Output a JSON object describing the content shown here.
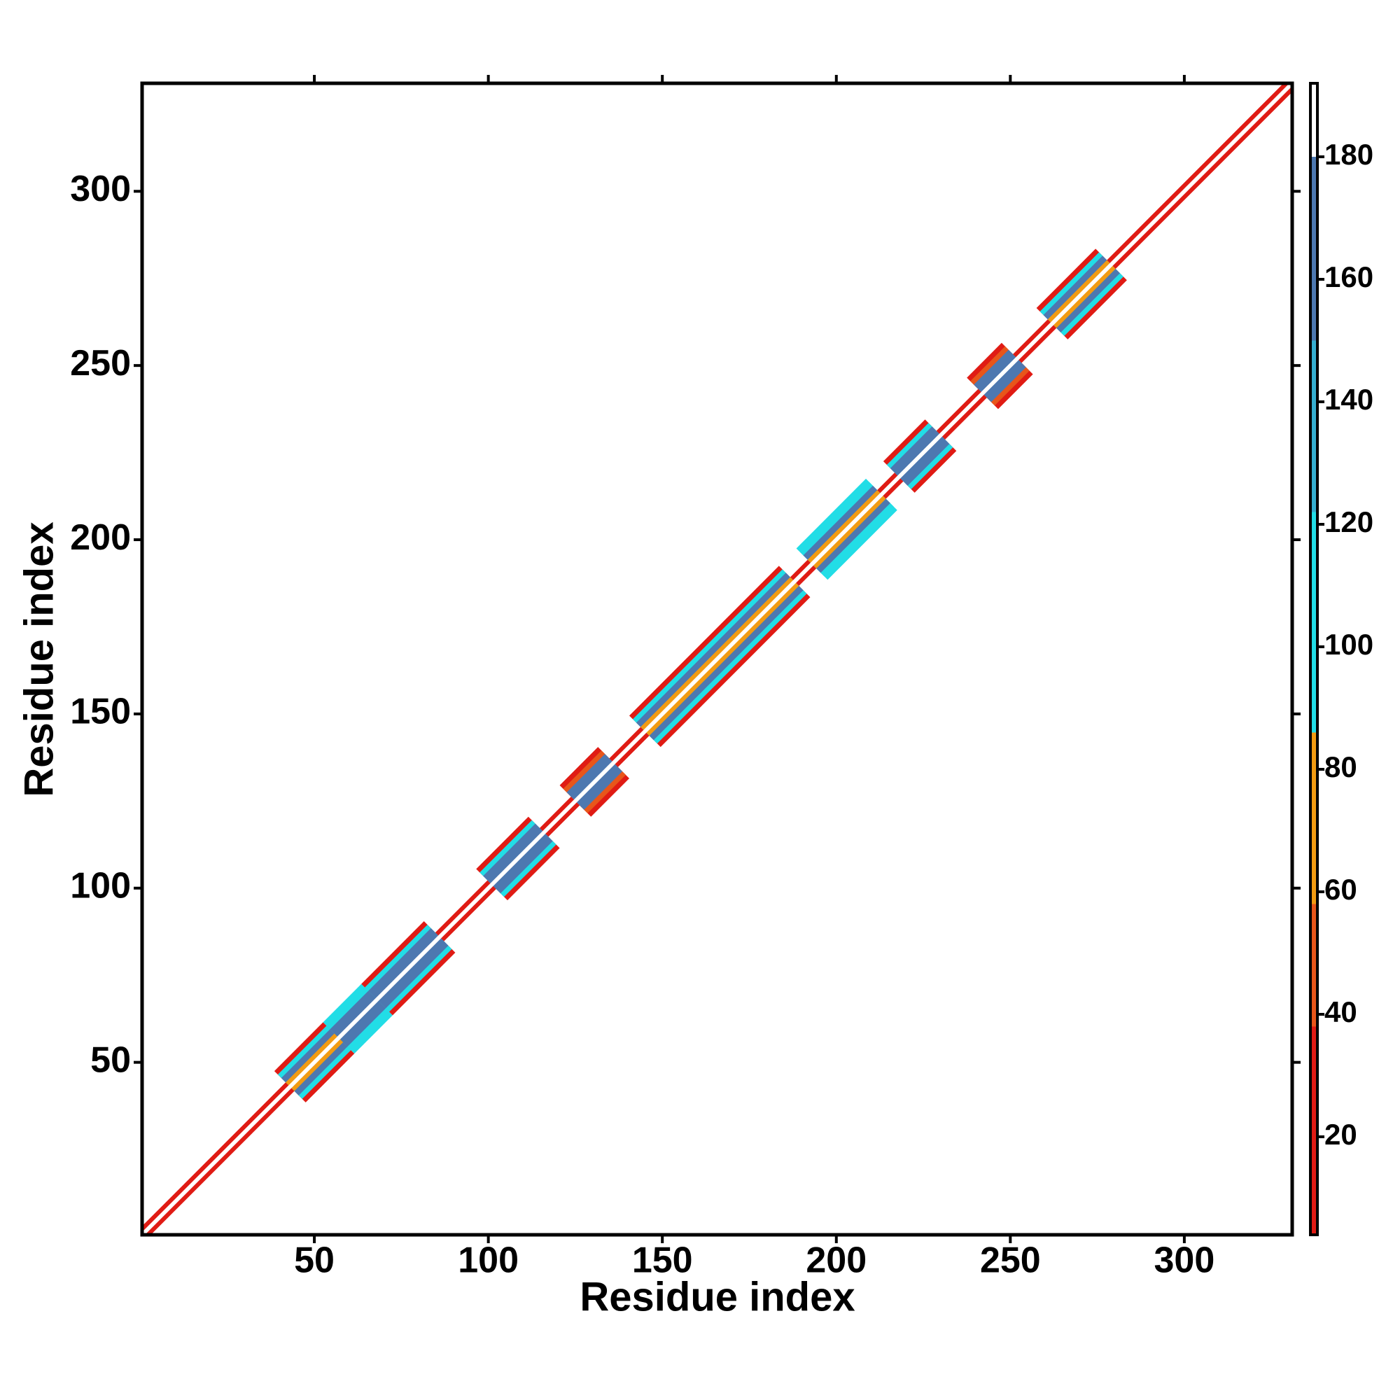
{
  "chart_data": {
    "type": "heatmap",
    "x_label": "Residue index",
    "y_label": "Residue index",
    "xlim": [
      0.5,
      331
    ],
    "ylim": [
      0.5,
      331
    ],
    "xticks": [
      50,
      100,
      150,
      200,
      250,
      300
    ],
    "yticks": [
      50,
      100,
      150,
      200,
      250,
      300
    ],
    "colorbar": {
      "lim": [
        4,
        192
      ],
      "ticks": [
        20,
        40,
        60,
        80,
        100,
        120,
        140,
        160,
        180
      ],
      "bands": [
        {
          "from": 4,
          "to": 38,
          "color": "#e01b14"
        },
        {
          "from": 38,
          "to": 58,
          "color": "#e8561a"
        },
        {
          "from": 58,
          "to": 86,
          "color": "#f29b12"
        },
        {
          "from": 86,
          "to": 122,
          "color": "#22dde6"
        },
        {
          "from": 122,
          "to": 150,
          "color": "#36aed0"
        },
        {
          "from": 150,
          "to": 180,
          "color": "#4d78b0"
        },
        {
          "from": 180,
          "to": 192,
          "color": "#ffffff"
        }
      ]
    },
    "segments": [
      {
        "start": 1,
        "end": 331,
        "width": 2.5,
        "value": 30
      },
      {
        "start": 43,
        "end": 57,
        "width": 9,
        "value": 30
      },
      {
        "start": 57,
        "end": 68,
        "width": 9,
        "value": 100
      },
      {
        "start": 68,
        "end": 86,
        "width": 9,
        "value": 30
      },
      {
        "start": 101,
        "end": 116,
        "width": 9,
        "value": 30
      },
      {
        "start": 125,
        "end": 136,
        "width": 9,
        "value": 30
      },
      {
        "start": 145,
        "end": 188,
        "width": 9,
        "value": 30
      },
      {
        "start": 193,
        "end": 213,
        "width": 9,
        "value": 100
      },
      {
        "start": 218,
        "end": 230,
        "width": 9,
        "value": 30
      },
      {
        "start": 242,
        "end": 252,
        "width": 9,
        "value": 30
      },
      {
        "start": 262,
        "end": 279,
        "width": 9,
        "value": 30
      },
      {
        "start": 43,
        "end": 57,
        "width": 7,
        "value": 100
      },
      {
        "start": 57,
        "end": 68,
        "width": 7,
        "value": 100
      },
      {
        "start": 68,
        "end": 86,
        "width": 7,
        "value": 100
      },
      {
        "start": 101,
        "end": 116,
        "width": 7,
        "value": 100
      },
      {
        "start": 125,
        "end": 136,
        "width": 7,
        "value": 50
      },
      {
        "start": 145,
        "end": 188,
        "width": 7,
        "value": 100
      },
      {
        "start": 193,
        "end": 213,
        "width": 7,
        "value": 100
      },
      {
        "start": 218,
        "end": 230,
        "width": 7,
        "value": 100
      },
      {
        "start": 242,
        "end": 252,
        "width": 7,
        "value": 50
      },
      {
        "start": 262,
        "end": 279,
        "width": 7,
        "value": 100
      },
      {
        "start": 43,
        "end": 57,
        "width": 5,
        "value": 160
      },
      {
        "start": 57,
        "end": 68,
        "width": 5,
        "value": 160
      },
      {
        "start": 68,
        "end": 86,
        "width": 5,
        "value": 160
      },
      {
        "start": 101,
        "end": 116,
        "width": 5,
        "value": 160
      },
      {
        "start": 125,
        "end": 136,
        "width": 5,
        "value": 160
      },
      {
        "start": 145,
        "end": 188,
        "width": 5,
        "value": 160
      },
      {
        "start": 193,
        "end": 213,
        "width": 5,
        "value": 160
      },
      {
        "start": 218,
        "end": 230,
        "width": 5,
        "value": 160
      },
      {
        "start": 242,
        "end": 252,
        "width": 5,
        "value": 160
      },
      {
        "start": 262,
        "end": 279,
        "width": 5,
        "value": 160
      },
      {
        "start": 43,
        "end": 57,
        "width": 2.5,
        "value": 70
      },
      {
        "start": 145,
        "end": 188,
        "width": 2.5,
        "value": 70
      },
      {
        "start": 193,
        "end": 213,
        "width": 2.5,
        "value": 70
      },
      {
        "start": 262,
        "end": 279,
        "width": 2.5,
        "value": 70
      },
      {
        "start": 1,
        "end": 331,
        "width": 0.8,
        "value": 185
      }
    ]
  }
}
